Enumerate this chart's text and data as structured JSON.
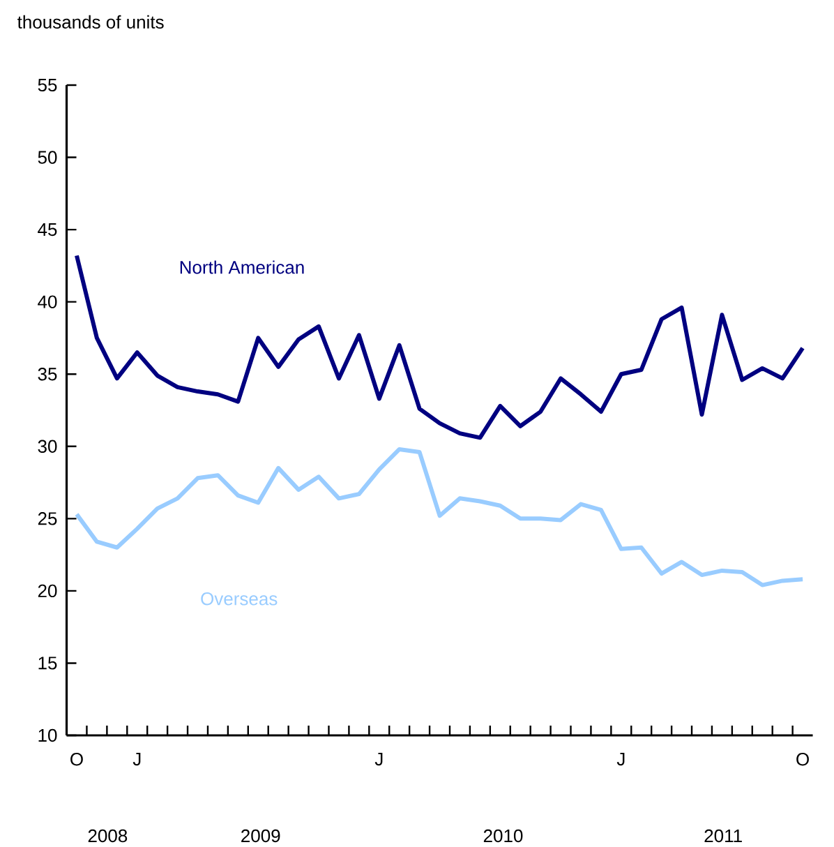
{
  "chart_data": {
    "type": "line",
    "ylabel": "thousands of units",
    "categories": [
      "O",
      null,
      null,
      "J",
      null,
      null,
      null,
      null,
      null,
      null,
      null,
      null,
      null,
      null,
      null,
      "J",
      null,
      null,
      null,
      null,
      null,
      null,
      null,
      null,
      null,
      null,
      null,
      "J",
      null,
      null,
      null,
      null,
      null,
      null,
      null,
      null,
      "O"
    ],
    "series": [
      {
        "name": "North American",
        "color": "#000080",
        "values": [
          43.2,
          37.5,
          34.7,
          36.5,
          34.9,
          34.1,
          33.8,
          33.6,
          33.1,
          37.5,
          35.5,
          37.4,
          38.3,
          34.7,
          37.7,
          33.3,
          37.0,
          32.6,
          31.6,
          30.9,
          30.6,
          32.8,
          31.4,
          32.4,
          34.7,
          33.6,
          32.4,
          35.0,
          35.3,
          38.8,
          39.6,
          32.2,
          39.1,
          34.6,
          35.4,
          34.7,
          36.8
        ]
      },
      {
        "name": "Overseas",
        "color": "#99ccff",
        "values": [
          25.3,
          23.4,
          23.0,
          24.3,
          25.7,
          26.4,
          27.8,
          28.0,
          26.6,
          26.1,
          28.5,
          27.0,
          27.9,
          26.4,
          26.7,
          28.4,
          29.8,
          29.6,
          25.2,
          26.4,
          26.2,
          25.9,
          25.0,
          25.0,
          24.9,
          26.0,
          25.6,
          22.9,
          23.0,
          21.2,
          22.0,
          21.1,
          21.4,
          21.3,
          20.4,
          20.7,
          20.8
        ]
      }
    ],
    "ylim": [
      10,
      55
    ],
    "yticks": [
      10,
      15,
      20,
      25,
      30,
      35,
      40,
      45,
      50,
      55
    ],
    "annotations": [
      "2008",
      "2009",
      "2010",
      "2011"
    ],
    "grid": false,
    "legend": false,
    "marker": "none",
    "line_style": "solid"
  }
}
